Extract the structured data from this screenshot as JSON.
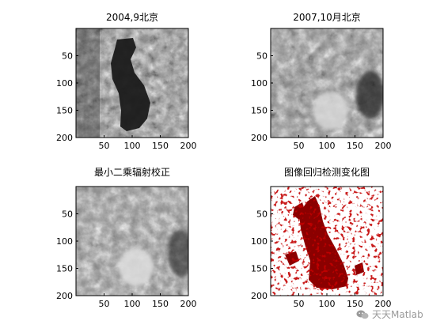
{
  "figure": {
    "panels": [
      {
        "id": "p1",
        "title": "2004,9北京",
        "kind": "grayscale",
        "xticks": [
          "50",
          "100",
          "150",
          "200"
        ],
        "yticks": [
          "50",
          "100",
          "150",
          "200"
        ]
      },
      {
        "id": "p2",
        "title": "2007,10月北京",
        "kind": "grayscale",
        "xticks": [
          "50",
          "100",
          "150",
          "200"
        ],
        "yticks": [
          "50",
          "100",
          "150",
          "200"
        ]
      },
      {
        "id": "p3",
        "title": "最小二乘辐射校正",
        "kind": "grayscale",
        "xticks": [
          "50",
          "100",
          "150",
          "200"
        ],
        "yticks": [
          "50",
          "100",
          "150",
          "200"
        ]
      },
      {
        "id": "p4",
        "title": "图像回归检测变化图",
        "kind": "change-map",
        "xticks": [
          "50",
          "100",
          "150",
          "200"
        ],
        "yticks": [
          "50",
          "100",
          "150",
          "200"
        ]
      }
    ],
    "colors": {
      "change": "#8b0000",
      "background": "#ffffff",
      "axis": "#000000"
    }
  },
  "watermark": {
    "text": "天天Matlab",
    "icon": "wechat-icon"
  }
}
